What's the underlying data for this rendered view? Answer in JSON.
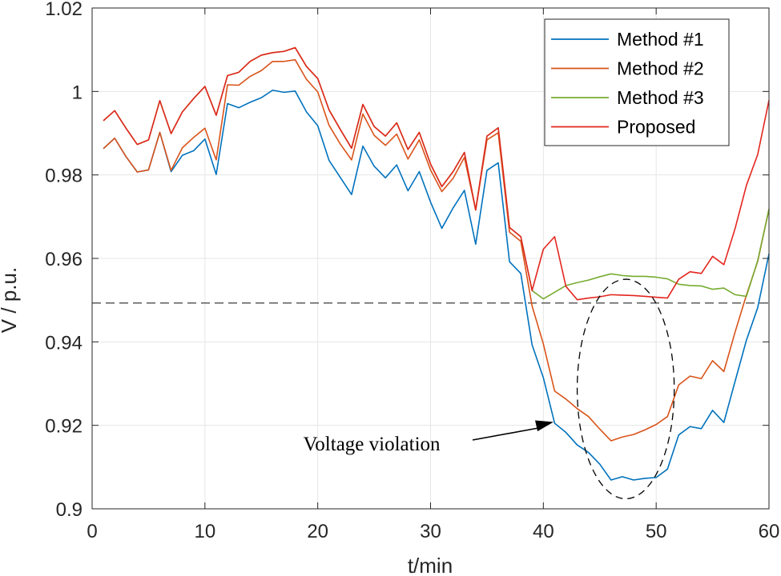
{
  "chart_data": {
    "type": "line",
    "xlabel": "t/min",
    "ylabel": "V / p.u.",
    "xlim": [
      0,
      60
    ],
    "ylim": [
      0.9,
      1.02
    ],
    "xticks": [
      0,
      10,
      20,
      30,
      40,
      50,
      60
    ],
    "yticks": [
      0.9,
      0.92,
      0.94,
      0.96,
      0.98,
      1.0,
      1.02
    ],
    "ytick_labels": [
      "0.9",
      "0.92",
      "0.94",
      "0.96",
      "0.98",
      "1",
      "1.02"
    ],
    "grid": true,
    "legend_position": "top-right",
    "threshold": 0.9493,
    "annotation": {
      "text": "Voltage violation",
      "ellipse": {
        "center_x": 47.3,
        "center_y": 0.9287,
        "radius_x": 4.3,
        "radius_y": 0.0263
      },
      "arrow_tip": [
        40.9,
        0.9208
      ]
    },
    "x": [
      1,
      2,
      3,
      4,
      5,
      6,
      7,
      8,
      9,
      10,
      11,
      12,
      13,
      14,
      15,
      16,
      17,
      18,
      19,
      20,
      21,
      22,
      23,
      24,
      25,
      26,
      27,
      28,
      29,
      30,
      31,
      32,
      33,
      34,
      35,
      36,
      37,
      38,
      39,
      40,
      41,
      42,
      43,
      44,
      45,
      46,
      47,
      48,
      49,
      50,
      51,
      52,
      53,
      54,
      55,
      56,
      57,
      58,
      59,
      60
    ],
    "series": [
      {
        "name": "Method #1",
        "color": "#0072BD",
        "values": [
          0.9863,
          0.9888,
          0.9844,
          0.9807,
          0.9812,
          0.9902,
          0.9808,
          0.9847,
          0.9858,
          0.9886,
          0.9801,
          0.9971,
          0.9961,
          0.9974,
          0.9985,
          1.0003,
          0.9998,
          1.0001,
          0.9951,
          0.9918,
          0.9835,
          0.9794,
          0.9753,
          0.9869,
          0.9821,
          0.9793,
          0.9824,
          0.9762,
          0.9808,
          0.9735,
          0.9672,
          0.9721,
          0.9763,
          0.9634,
          0.9811,
          0.9829,
          0.9592,
          0.9564,
          0.9393,
          0.9314,
          0.9205,
          0.9183,
          0.9153,
          0.9135,
          0.9107,
          0.9069,
          0.9077,
          0.9069,
          0.9073,
          0.9075,
          0.9095,
          0.9177,
          0.9197,
          0.9192,
          0.9236,
          0.9207,
          0.9306,
          0.9404,
          0.9482,
          0.9611
        ]
      },
      {
        "name": "Method #2",
        "color": "#D95319",
        "values": [
          0.9863,
          0.9888,
          0.9844,
          0.9807,
          0.9812,
          0.9902,
          0.9811,
          0.9865,
          0.989,
          0.9912,
          0.9836,
          1.0016,
          1.0015,
          1.0036,
          1.005,
          1.0072,
          1.0072,
          1.0076,
          1.0029,
          0.9999,
          0.9919,
          0.9874,
          0.9836,
          0.9946,
          0.9895,
          0.9871,
          0.9898,
          0.9838,
          0.9884,
          0.9812,
          0.976,
          0.9792,
          0.9842,
          0.9716,
          0.9884,
          0.9901,
          0.9663,
          0.9641,
          0.9486,
          0.9395,
          0.9282,
          0.9263,
          0.924,
          0.9221,
          0.9191,
          0.9163,
          0.9172,
          0.9178,
          0.9189,
          0.9202,
          0.9221,
          0.9297,
          0.9318,
          0.9312,
          0.9355,
          0.9329,
          0.9424,
          0.9512,
          0.9593,
          0.9718
        ]
      },
      {
        "name": "Method #3",
        "color": "#77AC30",
        "values": [
          0.993,
          0.9954,
          0.9912,
          0.9873,
          0.9884,
          0.9978,
          0.9899,
          0.9951,
          0.9983,
          1.0012,
          0.9943,
          1.0038,
          1.0046,
          1.0072,
          1.0087,
          1.0093,
          1.0096,
          1.0105,
          1.006,
          1.0031,
          0.9956,
          0.9909,
          0.9864,
          0.9969,
          0.9916,
          0.9893,
          0.9925,
          0.9861,
          0.9902,
          0.9826,
          0.9772,
          0.9808,
          0.9854,
          0.9716,
          0.9893,
          0.9913,
          0.9674,
          0.9652,
          0.9523,
          0.9503,
          0.9519,
          0.9535,
          0.9542,
          0.9548,
          0.9556,
          0.9563,
          0.9559,
          0.9557,
          0.9557,
          0.9555,
          0.9551,
          0.9538,
          0.9535,
          0.9534,
          0.9526,
          0.9529,
          0.9513,
          0.9509,
          0.9595,
          0.9718
        ]
      },
      {
        "name": "Proposed",
        "color": "#E3261E",
        "values": [
          0.993,
          0.9954,
          0.9912,
          0.9873,
          0.9884,
          0.9978,
          0.9899,
          0.9951,
          0.9983,
          1.0012,
          0.9943,
          1.0038,
          1.0046,
          1.0072,
          1.0087,
          1.0093,
          1.0096,
          1.0105,
          1.006,
          1.0031,
          0.9956,
          0.9909,
          0.9864,
          0.9969,
          0.9916,
          0.9893,
          0.9925,
          0.9861,
          0.9902,
          0.9826,
          0.9772,
          0.9808,
          0.9854,
          0.9716,
          0.9893,
          0.9913,
          0.9674,
          0.9652,
          0.9523,
          0.9622,
          0.9652,
          0.9533,
          0.9501,
          0.9505,
          0.9508,
          0.9513,
          0.9512,
          0.9511,
          0.9509,
          0.9507,
          0.9505,
          0.955,
          0.9568,
          0.9564,
          0.9605,
          0.9585,
          0.9672,
          0.9775,
          0.9849,
          0.9979
        ]
      }
    ]
  }
}
